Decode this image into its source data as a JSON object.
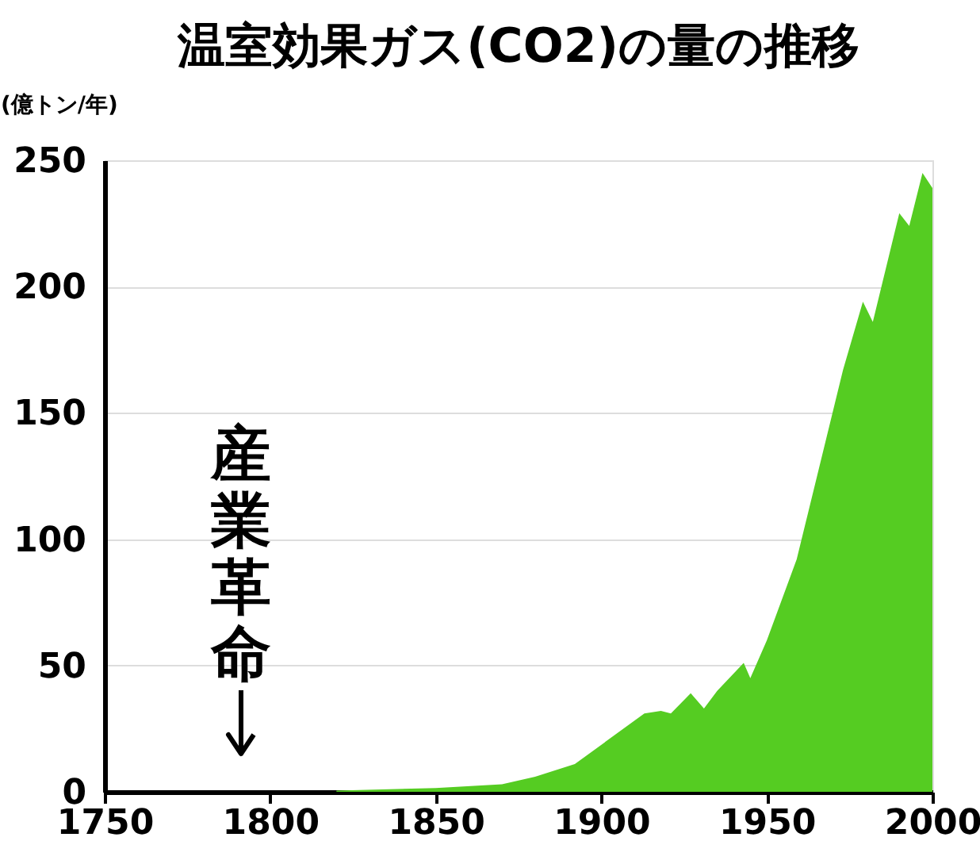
{
  "chart_data": {
    "type": "area",
    "title": "温室効果ガス(CO2)の量の推移",
    "ylabel": "(億トン/年)",
    "x": [
      1820,
      1850,
      1870,
      1880,
      1892,
      1913,
      1918,
      1921,
      1927,
      1931,
      1935,
      1943,
      1945,
      1950,
      1959,
      1973,
      1979,
      1982,
      1990,
      1993,
      1997,
      2000
    ],
    "series": [
      {
        "color": "#55cc22",
        "values": [
          0.5,
          1.5,
          3,
          6,
          11,
          31,
          32,
          31,
          39,
          33,
          40,
          51,
          45,
          60,
          92,
          167,
          194,
          186,
          229,
          224,
          245,
          239
        ]
      }
    ],
    "xlim": [
      1750,
      2000
    ],
    "xticks": [
      1750,
      1800,
      1850,
      1900,
      1950,
      2000
    ],
    "ylim": [
      0,
      250
    ],
    "yticks": [
      0,
      50,
      100,
      150,
      200,
      250
    ],
    "grid": "y",
    "annotations": [
      "産業革命"
    ]
  }
}
